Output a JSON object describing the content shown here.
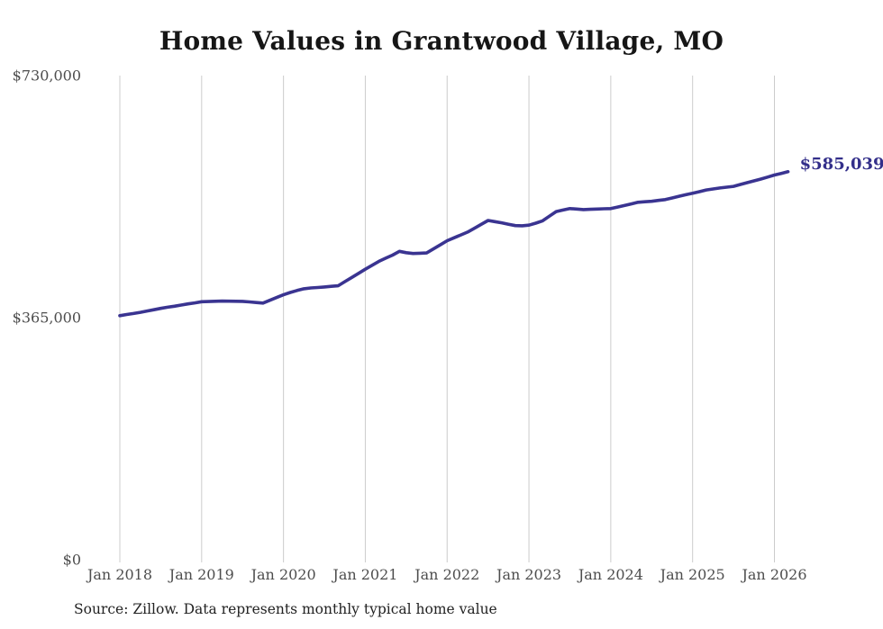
{
  "chart_data": {
    "type": "line",
    "title": "Home Values in Grantwood Village, MO",
    "source": "Source: Zillow. Data represents monthly typical home value",
    "end_label": "$585,039",
    "end_value": 585039,
    "ylim": [
      0,
      730000
    ],
    "grid": "vertical-only",
    "legend": "none",
    "x_ticks": [
      "Jan 2018",
      "Jan 2019",
      "Jan 2020",
      "Jan 2021",
      "Jan 2022",
      "Jan 2023",
      "Jan 2024",
      "Jan 2025",
      "Jan 2026"
    ],
    "y_ticks": [
      {
        "label": "$0",
        "value": 0
      },
      {
        "label": "$365,000",
        "value": 365000
      },
      {
        "label": "$730,000",
        "value": 730000
      }
    ],
    "series": [
      {
        "name": "Typical home value",
        "start_month": "Jan 2018",
        "end_month": "Mar 2026",
        "frequency": "monthly",
        "values": [
          368000,
          369700,
          371300,
          373000,
          375000,
          377000,
          379000,
          380700,
          382300,
          384000,
          385700,
          387300,
          389000,
          389300,
          389700,
          390000,
          389800,
          389700,
          389500,
          388700,
          387800,
          387000,
          391200,
          395400,
          399500,
          403000,
          406000,
          408500,
          409800,
          410500,
          411300,
          412200,
          413000,
          419300,
          425500,
          431800,
          438000,
          444000,
          450000,
          454700,
          459300,
          465000,
          463000,
          461800,
          462200,
          462500,
          468700,
          474800,
          481000,
          485300,
          489700,
          494000,
          499800,
          505700,
          511500,
          509800,
          508000,
          505900,
          503800,
          503500,
          504500,
          507500,
          511000,
          518000,
          525000,
          527300,
          529500,
          528800,
          528000,
          528400,
          528800,
          529200,
          529500,
          531800,
          534000,
          536500,
          539000,
          539800,
          540500,
          541800,
          543000,
          545500,
          548000,
          550300,
          552500,
          555000,
          557500,
          559000,
          560500,
          561800,
          563000,
          565800,
          568500,
          571300,
          574000,
          577000,
          580000,
          582500,
          585039
        ]
      }
    ],
    "colors": {
      "line": "#3a3491",
      "end_label": "#332f8a",
      "grid": "#cccccc",
      "axis_text": "#4d4d4d",
      "title": "#161616",
      "source_text": "#222222",
      "background": "#ffffff"
    }
  }
}
